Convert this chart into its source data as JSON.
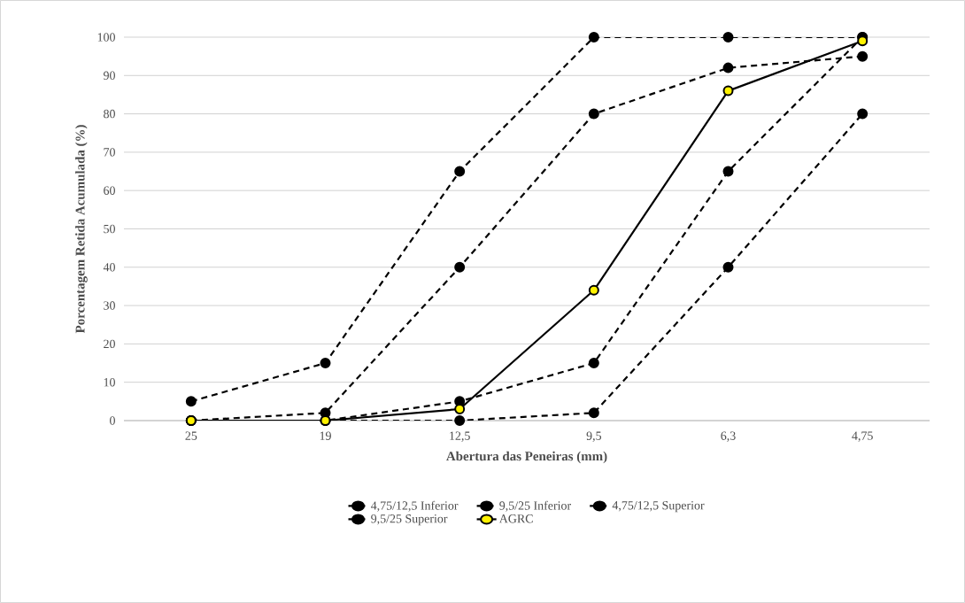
{
  "chart_data": {
    "type": "line",
    "xlabel": "Abertura das Peneiras (mm)",
    "ylabel": "Porcentagem Retida Acumulada (%)",
    "categories": [
      "25",
      "19",
      "12,5",
      "9,5",
      "6,3",
      "4,75"
    ],
    "ylim": [
      0,
      100
    ],
    "yticks": [
      0,
      10,
      20,
      30,
      40,
      50,
      60,
      70,
      80,
      90,
      100
    ],
    "grid": "y",
    "legend": "bottom",
    "marker": "circle",
    "series": [
      {
        "name": "4,75/12,5 Inferior",
        "color": "#000000",
        "line_style": "dashed",
        "values": [
          0,
          0,
          0,
          2,
          40,
          80
        ]
      },
      {
        "name": "9,5/25 Inferior",
        "color": "#000000",
        "line_style": "dashed",
        "values": [
          0,
          2,
          40,
          80,
          92,
          95
        ]
      },
      {
        "name": "4,75/12,5 Superior",
        "color": "#000000",
        "line_style": "dashed",
        "values": [
          0,
          0,
          5,
          15,
          65,
          100
        ]
      },
      {
        "name": "9,5/25 Superior",
        "color": "#000000",
        "line_style": "dashed",
        "values": [
          5,
          15,
          65,
          100,
          100,
          100
        ]
      },
      {
        "name": "AGRC",
        "color": "#000000",
        "line_style": "solid",
        "values": [
          0,
          0,
          3,
          34,
          86,
          99
        ]
      }
    ]
  }
}
